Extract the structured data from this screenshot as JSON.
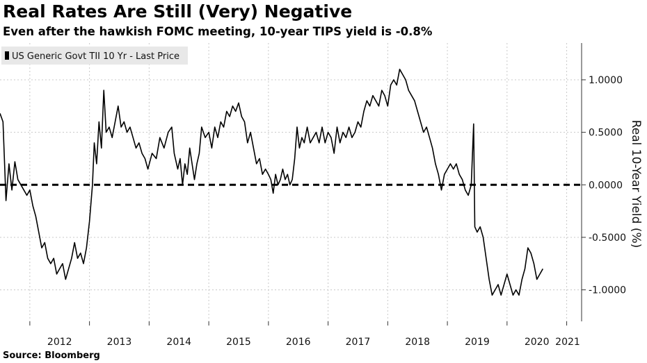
{
  "title": "Real Rates Are Still (Very) Negative",
  "subtitle": "Even after the hawkish FOMC meeting, 10-year TIPS yield is -0.8%",
  "source": "Source: Bloomberg",
  "colors": {
    "line": "#000000",
    "grid": "#c8c8c8",
    "legend_bg": "#e8e8e8"
  },
  "chart_data": {
    "type": "line",
    "title": "Real Rates Are Still (Very) Negative",
    "subtitle": "Even after the hawkish FOMC meeting, 10-year TIPS yield is -0.8%",
    "xlabel": "",
    "ylabel": "Real 10-Year Yield (%)",
    "legend": {
      "entries": [
        "US Generic Govt TII 10 Yr - Last Price"
      ],
      "placement": "top-left"
    },
    "grid": true,
    "x_ticks": [
      "2012",
      "2013",
      "2014",
      "2015",
      "2016",
      "2017",
      "2018",
      "2019",
      "2020",
      "2021"
    ],
    "y_ticks": [
      "1.0000",
      "0.5000",
      "0.0000",
      "-0.5000",
      "-1.0000"
    ],
    "ylim": [
      -1.3,
      1.35
    ],
    "xlim": [
      2011.5,
      2021.25
    ],
    "reference_line": {
      "y": 0.0,
      "style": "dashed"
    },
    "series": [
      {
        "name": "US Generic Govt TII 10 Yr - Last Price",
        "points": [
          [
            2011.5,
            0.68
          ],
          [
            2011.55,
            0.6
          ],
          [
            2011.6,
            -0.15
          ],
          [
            2011.65,
            0.2
          ],
          [
            2011.7,
            -0.05
          ],
          [
            2011.75,
            0.22
          ],
          [
            2011.8,
            0.05
          ],
          [
            2011.85,
            0.0
          ],
          [
            2011.9,
            -0.05
          ],
          [
            2011.95,
            -0.1
          ],
          [
            2012.0,
            -0.05
          ],
          [
            2012.05,
            -0.2
          ],
          [
            2012.1,
            -0.3
          ],
          [
            2012.15,
            -0.45
          ],
          [
            2012.2,
            -0.6
          ],
          [
            2012.25,
            -0.55
          ],
          [
            2012.3,
            -0.7
          ],
          [
            2012.35,
            -0.75
          ],
          [
            2012.4,
            -0.7
          ],
          [
            2012.45,
            -0.85
          ],
          [
            2012.5,
            -0.8
          ],
          [
            2012.55,
            -0.75
          ],
          [
            2012.6,
            -0.9
          ],
          [
            2012.65,
            -0.8
          ],
          [
            2012.7,
            -0.7
          ],
          [
            2012.75,
            -0.55
          ],
          [
            2012.8,
            -0.7
          ],
          [
            2012.85,
            -0.65
          ],
          [
            2012.9,
            -0.75
          ],
          [
            2012.95,
            -0.6
          ],
          [
            2013.0,
            -0.35
          ],
          [
            2013.05,
            0.0
          ],
          [
            2013.08,
            0.4
          ],
          [
            2013.12,
            0.2
          ],
          [
            2013.16,
            0.6
          ],
          [
            2013.2,
            0.35
          ],
          [
            2013.24,
            0.9
          ],
          [
            2013.28,
            0.5
          ],
          [
            2013.33,
            0.55
          ],
          [
            2013.38,
            0.45
          ],
          [
            2013.43,
            0.6
          ],
          [
            2013.48,
            0.75
          ],
          [
            2013.53,
            0.55
          ],
          [
            2013.58,
            0.6
          ],
          [
            2013.63,
            0.5
          ],
          [
            2013.68,
            0.55
          ],
          [
            2013.73,
            0.45
          ],
          [
            2013.78,
            0.35
          ],
          [
            2013.83,
            0.4
          ],
          [
            2013.88,
            0.3
          ],
          [
            2013.93,
            0.25
          ],
          [
            2013.98,
            0.15
          ],
          [
            2014.05,
            0.3
          ],
          [
            2014.12,
            0.25
          ],
          [
            2014.18,
            0.45
          ],
          [
            2014.25,
            0.35
          ],
          [
            2014.32,
            0.5
          ],
          [
            2014.38,
            0.55
          ],
          [
            2014.42,
            0.3
          ],
          [
            2014.48,
            0.15
          ],
          [
            2014.52,
            0.25
          ],
          [
            2014.56,
            0.0
          ],
          [
            2014.6,
            0.2
          ],
          [
            2014.64,
            0.1
          ],
          [
            2014.68,
            0.35
          ],
          [
            2014.72,
            0.2
          ],
          [
            2014.76,
            0.05
          ],
          [
            2014.8,
            0.2
          ],
          [
            2014.84,
            0.3
          ],
          [
            2014.88,
            0.55
          ],
          [
            2014.94,
            0.45
          ],
          [
            2015.0,
            0.5
          ],
          [
            2015.05,
            0.35
          ],
          [
            2015.1,
            0.55
          ],
          [
            2015.15,
            0.45
          ],
          [
            2015.2,
            0.6
          ],
          [
            2015.25,
            0.55
          ],
          [
            2015.3,
            0.7
          ],
          [
            2015.35,
            0.65
          ],
          [
            2015.4,
            0.75
          ],
          [
            2015.45,
            0.7
          ],
          [
            2015.5,
            0.78
          ],
          [
            2015.55,
            0.65
          ],
          [
            2015.6,
            0.6
          ],
          [
            2015.65,
            0.4
          ],
          [
            2015.7,
            0.5
          ],
          [
            2015.75,
            0.35
          ],
          [
            2015.8,
            0.2
          ],
          [
            2015.85,
            0.25
          ],
          [
            2015.9,
            0.1
          ],
          [
            2015.95,
            0.15
          ],
          [
            2016.0,
            0.1
          ],
          [
            2016.04,
            0.05
          ],
          [
            2016.08,
            -0.08
          ],
          [
            2016.12,
            0.1
          ],
          [
            2016.16,
            0.0
          ],
          [
            2016.2,
            0.05
          ],
          [
            2016.24,
            0.15
          ],
          [
            2016.28,
            0.05
          ],
          [
            2016.32,
            0.1
          ],
          [
            2016.36,
            0.0
          ],
          [
            2016.4,
            0.05
          ],
          [
            2016.44,
            0.25
          ],
          [
            2016.48,
            0.55
          ],
          [
            2016.52,
            0.35
          ],
          [
            2016.56,
            0.45
          ],
          [
            2016.6,
            0.4
          ],
          [
            2016.65,
            0.55
          ],
          [
            2016.7,
            0.4
          ],
          [
            2016.75,
            0.45
          ],
          [
            2016.8,
            0.5
          ],
          [
            2016.85,
            0.4
          ],
          [
            2016.9,
            0.55
          ],
          [
            2016.95,
            0.4
          ],
          [
            2017.0,
            0.5
          ],
          [
            2017.05,
            0.45
          ],
          [
            2017.1,
            0.3
          ],
          [
            2017.15,
            0.55
          ],
          [
            2017.2,
            0.4
          ],
          [
            2017.25,
            0.5
          ],
          [
            2017.3,
            0.45
          ],
          [
            2017.35,
            0.55
          ],
          [
            2017.4,
            0.45
          ],
          [
            2017.45,
            0.5
          ],
          [
            2017.5,
            0.6
          ],
          [
            2017.55,
            0.55
          ],
          [
            2017.6,
            0.7
          ],
          [
            2017.65,
            0.8
          ],
          [
            2017.7,
            0.75
          ],
          [
            2017.75,
            0.85
          ],
          [
            2017.8,
            0.8
          ],
          [
            2017.85,
            0.75
          ],
          [
            2017.9,
            0.9
          ],
          [
            2017.95,
            0.85
          ],
          [
            2018.0,
            0.75
          ],
          [
            2018.05,
            0.95
          ],
          [
            2018.1,
            1.0
          ],
          [
            2018.15,
            0.95
          ],
          [
            2018.2,
            1.1
          ],
          [
            2018.25,
            1.05
          ],
          [
            2018.3,
            1.0
          ],
          [
            2018.35,
            0.9
          ],
          [
            2018.4,
            0.85
          ],
          [
            2018.45,
            0.8
          ],
          [
            2018.5,
            0.7
          ],
          [
            2018.55,
            0.6
          ],
          [
            2018.6,
            0.5
          ],
          [
            2018.65,
            0.55
          ],
          [
            2018.7,
            0.45
          ],
          [
            2018.75,
            0.35
          ],
          [
            2018.8,
            0.2
          ],
          [
            2018.85,
            0.1
          ],
          [
            2018.9,
            -0.05
          ],
          [
            2018.95,
            0.1
          ],
          [
            2019.0,
            0.15
          ],
          [
            2019.05,
            0.2
          ],
          [
            2019.1,
            0.15
          ],
          [
            2019.15,
            0.2
          ],
          [
            2019.2,
            0.1
          ],
          [
            2019.25,
            0.05
          ],
          [
            2019.3,
            -0.05
          ],
          [
            2019.35,
            -0.1
          ],
          [
            2019.4,
            0.0
          ],
          [
            2019.44,
            0.58
          ],
          [
            2019.46,
            -0.4
          ],
          [
            2019.5,
            -0.45
          ],
          [
            2019.55,
            -0.4
          ],
          [
            2019.6,
            -0.5
          ],
          [
            2019.65,
            -0.7
          ],
          [
            2019.7,
            -0.9
          ],
          [
            2019.75,
            -1.05
          ],
          [
            2019.8,
            -1.0
          ],
          [
            2019.85,
            -0.95
          ],
          [
            2019.9,
            -1.05
          ],
          [
            2019.95,
            -0.95
          ],
          [
            2020.0,
            -0.85
          ],
          [
            2020.05,
            -0.95
          ],
          [
            2020.1,
            -1.05
          ],
          [
            2020.15,
            -1.0
          ],
          [
            2020.2,
            -1.05
          ],
          [
            2020.25,
            -0.9
          ],
          [
            2020.3,
            -0.8
          ],
          [
            2020.35,
            -0.6
          ],
          [
            2020.4,
            -0.65
          ],
          [
            2020.45,
            -0.75
          ],
          [
            2020.5,
            -0.9
          ],
          [
            2020.55,
            -0.85
          ],
          [
            2020.6,
            -0.8
          ]
        ]
      }
    ]
  }
}
